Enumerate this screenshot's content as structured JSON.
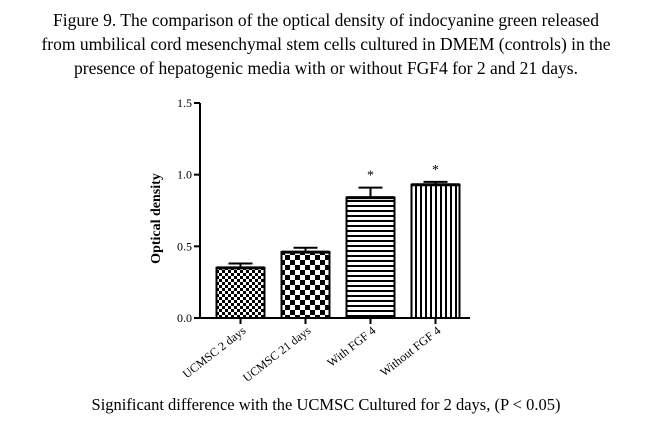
{
  "figure": {
    "title_lines": [
      "Figure 9. The comparison of the optical density of indocyanine green released",
      "from umbilical cord mesenchymal stem cells cultured in DMEM (controls) in the",
      "presence of hepatogenic media with or without FGF4 for 2 and 21 days."
    ],
    "caption": "Significant  difference with the UCMSC Cultured for 2 days, (P < 0.05)"
  },
  "chart_data": {
    "type": "bar",
    "title": "",
    "xlabel": "",
    "ylabel": "Optical density",
    "ylim": [
      0,
      1.5
    ],
    "yticks": [
      0.0,
      0.5,
      1.0,
      1.5
    ],
    "ytick_labels": [
      "0.0",
      "0.5",
      "1.0",
      "1.5"
    ],
    "grid": false,
    "legend": "none",
    "categories": [
      "UCMSC 2 days",
      "UCMSC 21 days",
      "With FGF 4",
      "Without FGF 4"
    ],
    "values": [
      0.35,
      0.46,
      0.84,
      0.93
    ],
    "error": [
      0.03,
      0.03,
      0.07,
      0.02
    ],
    "annotations": [
      "",
      "",
      "*",
      "*"
    ],
    "patterns": [
      "checker-fine",
      "checker-coarse",
      "horizontal-stripes",
      "vertical-stripes"
    ],
    "colors": {
      "bar_fill": "#000000",
      "bar_background": "#ffffff",
      "axis": "#000000"
    }
  }
}
